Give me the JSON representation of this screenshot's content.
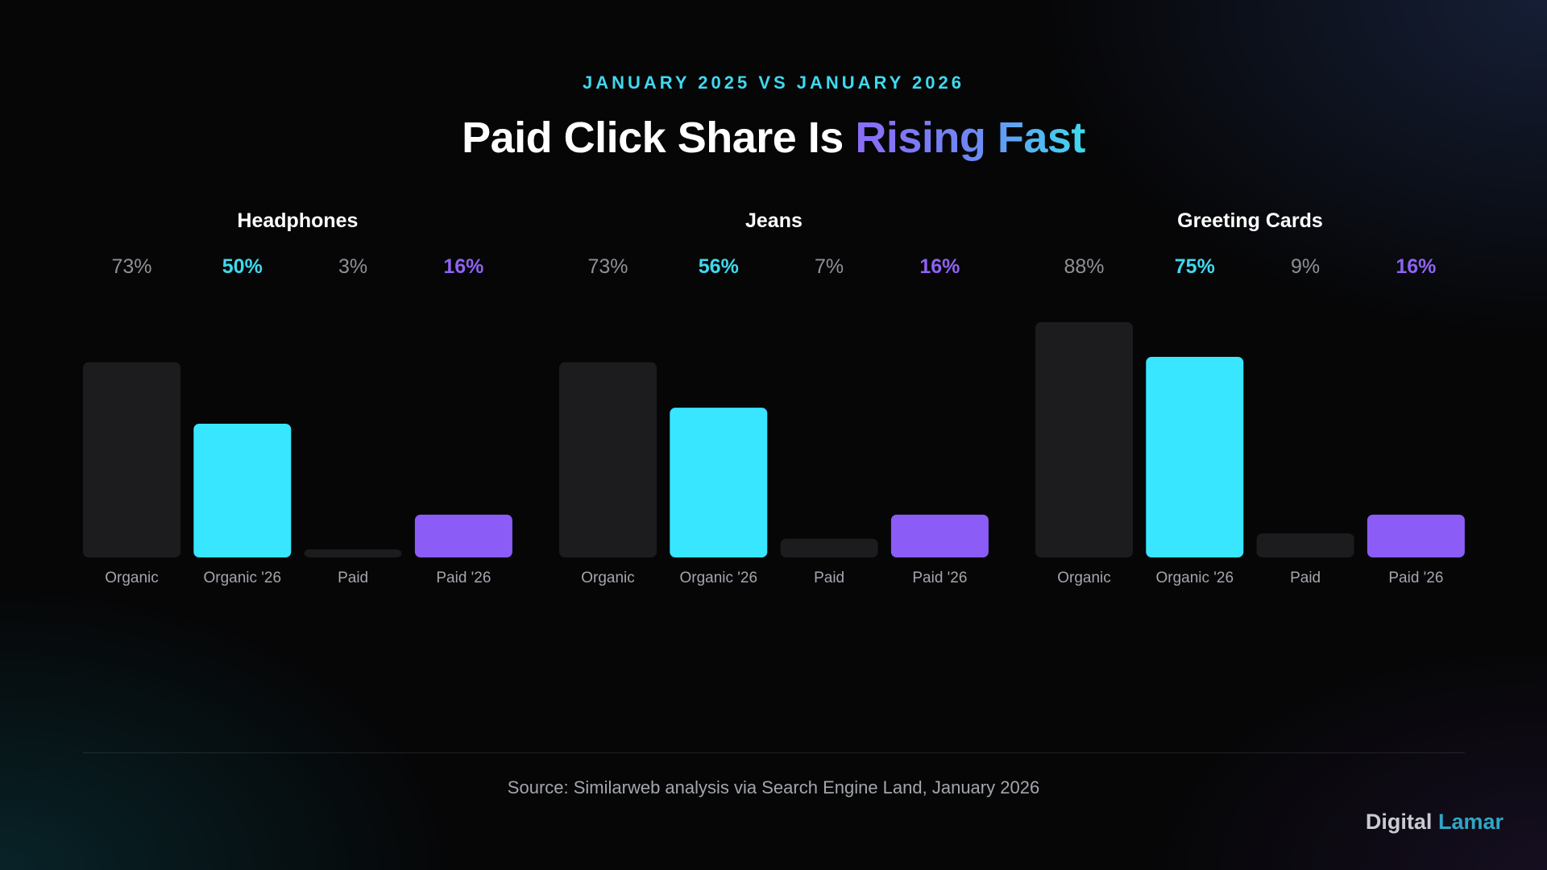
{
  "header": {
    "subtitle": "JANUARY 2025 VS JANUARY 2026",
    "title_main": "Paid Click Share Is ",
    "title_accent": "Rising Fast"
  },
  "chart_data": {
    "type": "bar",
    "ylim": [
      0,
      100
    ],
    "grid": false,
    "groups": [
      {
        "name": "Headphones",
        "bars": [
          {
            "label": "Organic",
            "value": 73,
            "value_label": "73%",
            "color": "#1c1c1e"
          },
          {
            "label": "Organic '26",
            "value": 50,
            "value_label": "50%",
            "color": "#38e6ff"
          },
          {
            "label": "Paid",
            "value": 3,
            "value_label": "3%",
            "color": "#1c1c1e"
          },
          {
            "label": "Paid '26",
            "value": 16,
            "value_label": "16%",
            "color": "#8b5cf6"
          }
        ]
      },
      {
        "name": "Jeans",
        "bars": [
          {
            "label": "Organic",
            "value": 73,
            "value_label": "73%",
            "color": "#1c1c1e"
          },
          {
            "label": "Organic '26",
            "value": 56,
            "value_label": "56%",
            "color": "#38e6ff"
          },
          {
            "label": "Paid",
            "value": 7,
            "value_label": "7%",
            "color": "#1c1c1e"
          },
          {
            "label": "Paid '26",
            "value": 16,
            "value_label": "16%",
            "color": "#8b5cf6"
          }
        ]
      },
      {
        "name": "Greeting Cards",
        "bars": [
          {
            "label": "Organic",
            "value": 88,
            "value_label": "88%",
            "color": "#1c1c1e"
          },
          {
            "label": "Organic '26",
            "value": 75,
            "value_label": "75%",
            "color": "#38e6ff"
          },
          {
            "label": "Paid",
            "value": 9,
            "value_label": "9%",
            "color": "#1c1c1e"
          },
          {
            "label": "Paid '26",
            "value": 16,
            "value_label": "16%",
            "color": "#8b5cf6"
          }
        ]
      }
    ],
    "value_label_colors": {
      "Organic": "#8e9096",
      "Organic '26": "#3fd9ef",
      "Paid": "#8e9096",
      "Paid '26": "#8f63f2"
    }
  },
  "footer": {
    "source": "Source: Similarweb analysis via Search Engine Land, January 2026",
    "brand_part1": "Digital",
    "brand_part2": "Lamar"
  }
}
